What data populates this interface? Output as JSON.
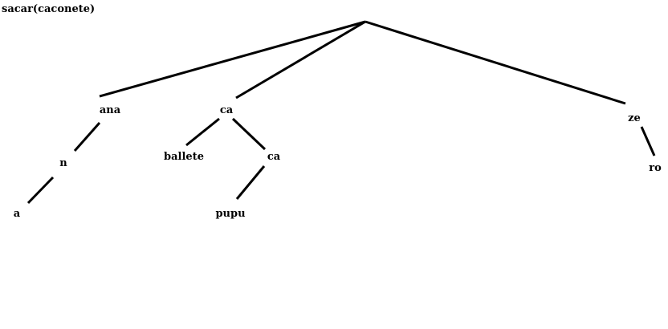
{
  "title": "sacar(caconete)",
  "tree": {
    "labels": {
      "ana": "ana",
      "n": "n",
      "a": "a",
      "ca1": "ca",
      "ballete": "ballete",
      "ca2": "ca",
      "pupu": "pupu",
      "ze": "ze",
      "ro": "ro"
    }
  },
  "colors": {
    "line": "#000000",
    "text": "#000000",
    "background": "#ffffff"
  }
}
